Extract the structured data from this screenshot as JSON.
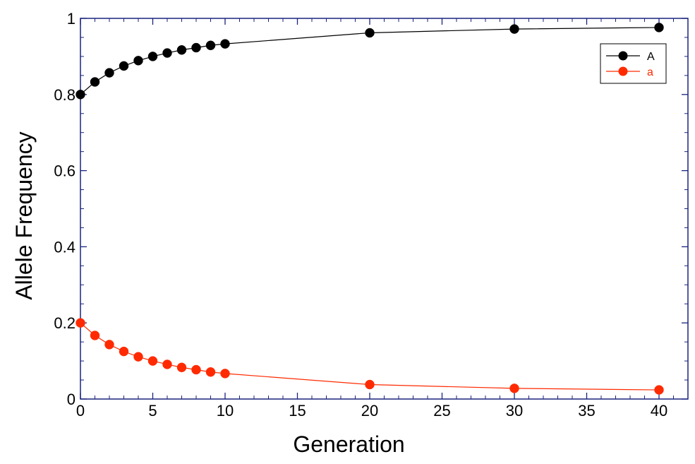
{
  "chart_data": {
    "type": "line",
    "title": "",
    "xlabel": "Generation",
    "ylabel": "Allele Frequency",
    "xlim": [
      0,
      42
    ],
    "ylim": [
      0,
      1
    ],
    "x_ticks": [
      0,
      5,
      10,
      15,
      20,
      25,
      30,
      35,
      40
    ],
    "x_tick_labels": [
      "0",
      "5",
      "10",
      "15",
      "20",
      "25",
      "30",
      "35",
      "40"
    ],
    "y_ticks": [
      0,
      0.2,
      0.4,
      0.6,
      0.8,
      1
    ],
    "y_tick_labels": [
      "0",
      "0.2",
      "0.4",
      "0.6",
      "0.8",
      "1"
    ],
    "grid": false,
    "legend_position": "top-right",
    "x": [
      0,
      1,
      2,
      3,
      4,
      5,
      6,
      7,
      8,
      9,
      10,
      20,
      30,
      40
    ],
    "series": [
      {
        "name": "A",
        "color": "#000000",
        "marker": "circle",
        "values": [
          0.8,
          0.833,
          0.857,
          0.875,
          0.889,
          0.9,
          0.909,
          0.917,
          0.923,
          0.929,
          0.933,
          0.962,
          0.972,
          0.976
        ]
      },
      {
        "name": "a",
        "color": "#ff2a00",
        "marker": "circle",
        "values": [
          0.2,
          0.167,
          0.143,
          0.125,
          0.111,
          0.1,
          0.091,
          0.083,
          0.077,
          0.071,
          0.067,
          0.038,
          0.028,
          0.024
        ]
      }
    ],
    "frame_color": "#1a237e"
  }
}
